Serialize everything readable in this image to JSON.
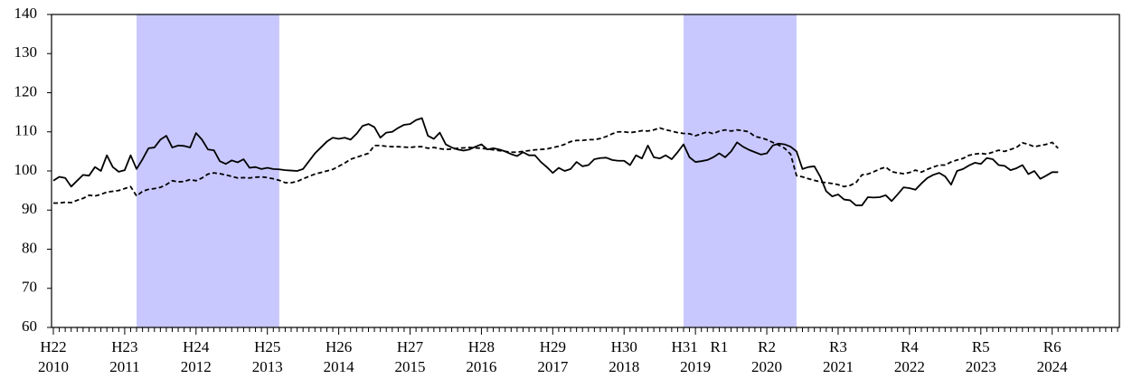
{
  "chart_data": {
    "type": "line",
    "categories": [
      "2010",
      null,
      null,
      null,
      null,
      null,
      null,
      null,
      null,
      null,
      null,
      null,
      "2011",
      null,
      null,
      null,
      null,
      null,
      null,
      null,
      null,
      null,
      null,
      null,
      "2012",
      null,
      null,
      null,
      null,
      null,
      null,
      null,
      null,
      null,
      null,
      null,
      "2013",
      null,
      null,
      null,
      null,
      null,
      null,
      null,
      null,
      null,
      null,
      null,
      "2014",
      null,
      null,
      null,
      null,
      null,
      null,
      null,
      null,
      null,
      null,
      null,
      "2015",
      null,
      null,
      null,
      null,
      null,
      null,
      null,
      null,
      null,
      null,
      null,
      "2016",
      null,
      null,
      null,
      null,
      null,
      null,
      null,
      null,
      null,
      null,
      null,
      "2017",
      null,
      null,
      null,
      null,
      null,
      null,
      null,
      null,
      null,
      null,
      null,
      "2018",
      null,
      null,
      null,
      null,
      null,
      null,
      null,
      null,
      null,
      null,
      null,
      "2019",
      null,
      null,
      null,
      null,
      null,
      null,
      null,
      null,
      null,
      null,
      null,
      "2020",
      null,
      null,
      null,
      null,
      null,
      null,
      null,
      null,
      null,
      null,
      null,
      "2021",
      null,
      null,
      null,
      null,
      null,
      null,
      null,
      null,
      null,
      null,
      null,
      "2022",
      null,
      null,
      null,
      null,
      null,
      null,
      null,
      null,
      null,
      null,
      null,
      "2023",
      null,
      null,
      null,
      null,
      null,
      null,
      null,
      null,
      null,
      null,
      null,
      "2024",
      null,
      null,
      null,
      null,
      null,
      null,
      null,
      null,
      null,
      null,
      null
    ],
    "era_labels": [
      "H22",
      null,
      null,
      null,
      null,
      null,
      null,
      null,
      null,
      null,
      null,
      null,
      "H23",
      null,
      null,
      null,
      null,
      null,
      null,
      null,
      null,
      null,
      null,
      null,
      "H24",
      null,
      null,
      null,
      null,
      null,
      null,
      null,
      null,
      null,
      null,
      null,
      "H25",
      null,
      null,
      null,
      null,
      null,
      null,
      null,
      null,
      null,
      null,
      null,
      "H26",
      null,
      null,
      null,
      null,
      null,
      null,
      null,
      null,
      null,
      null,
      null,
      "H27",
      null,
      null,
      null,
      null,
      null,
      null,
      null,
      null,
      null,
      null,
      null,
      "H28",
      null,
      null,
      null,
      null,
      null,
      null,
      null,
      null,
      null,
      null,
      null,
      "H29",
      null,
      null,
      null,
      null,
      null,
      null,
      null,
      null,
      null,
      null,
      null,
      "H30",
      null,
      null,
      null,
      null,
      null,
      null,
      null,
      null,
      null,
      null,
      null,
      "H31",
      null,
      null,
      null,
      "R1",
      null,
      null,
      null,
      null,
      null,
      null,
      null,
      "R2",
      null,
      null,
      null,
      null,
      null,
      null,
      null,
      null,
      null,
      null,
      null,
      "R3",
      null,
      null,
      null,
      null,
      null,
      null,
      null,
      null,
      null,
      null,
      null,
      "R4",
      null,
      null,
      null,
      null,
      null,
      null,
      null,
      null,
      null,
      null,
      null,
      "R5",
      null,
      null,
      null,
      null,
      null,
      null,
      null,
      null,
      null,
      null,
      null,
      "R6",
      null,
      null,
      null,
      null,
      null,
      null,
      null,
      null,
      null,
      null,
      null
    ],
    "series": [
      {
        "color": "#000000",
        "style": "solid",
        "values": [
          97.5,
          98.5,
          98.2,
          96,
          97.5,
          99,
          98.8,
          101,
          100,
          104,
          101,
          99.8,
          100.2,
          104,
          100.5,
          103,
          105.8,
          106,
          108,
          109,
          106,
          106.5,
          106.4,
          106,
          109.7,
          108,
          105.5,
          105.3,
          102.5,
          101.8,
          102.7,
          102.2,
          103,
          100.8,
          101,
          100.5,
          100.8,
          100.5,
          100.4,
          100.2,
          100.1,
          100,
          100.5,
          102.5,
          104.5,
          106,
          107.5,
          108.5,
          108.2,
          108.5,
          108,
          109.5,
          111.5,
          112,
          111.2,
          108.5,
          109.8,
          110,
          111,
          111.8,
          112,
          113,
          113.5,
          109,
          108.2,
          109.8,
          106.8,
          106,
          105.5,
          105.2,
          105.5,
          106.2,
          106.8,
          105.5,
          105.8,
          105.5,
          105,
          104.3,
          103.8,
          104.8,
          104,
          104,
          102.3,
          101,
          99.5,
          100.8,
          100,
          100.5,
          102.3,
          101.2,
          101.5,
          103,
          103.3,
          103.4,
          102.8,
          102.6,
          102.6,
          101.5,
          104,
          103.2,
          106.5,
          103.5,
          103.2,
          104,
          103,
          104.8,
          106.8,
          103.5,
          102.3,
          102.5,
          102.8,
          103.5,
          104.5,
          103.5,
          105,
          107.3,
          106.2,
          105.4,
          104.8,
          104.2,
          104.5,
          106.5,
          107,
          106.8,
          106.2,
          105,
          100.5,
          101,
          101.2,
          98.5,
          94.8,
          93.5,
          94,
          92.7,
          92.5,
          91.2,
          91.2,
          93.3,
          93.2,
          93.3,
          93.8,
          92.3,
          94,
          95.8,
          95.6,
          95.2,
          96.8,
          98.2,
          99,
          99.5,
          98.6,
          96.5,
          100,
          100.5,
          101.4,
          102.1,
          101.8,
          103.3,
          103,
          101.5,
          101.3,
          100.2,
          100.7,
          101.5,
          99.2,
          100,
          98,
          98.8,
          99.7,
          99.7,
          null,
          null,
          null,
          null,
          null,
          null,
          null,
          null,
          null,
          null
        ]
      },
      {
        "color": "#000000",
        "style": "dashed",
        "values": [
          91.8,
          91.8,
          92,
          91.9,
          92.5,
          93,
          93.8,
          93.6,
          94,
          94.6,
          94.8,
          95,
          95.5,
          96,
          93.6,
          94.8,
          95.3,
          95.5,
          95.8,
          96.5,
          97.5,
          97.2,
          97.3,
          97.8,
          97.5,
          98.2,
          99.2,
          99.5,
          99.3,
          99,
          98.6,
          98.2,
          98.3,
          98.2,
          98.4,
          98.5,
          98.3,
          98,
          97.6,
          97,
          97,
          97.3,
          98,
          98.6,
          99.2,
          99.6,
          100,
          100.4,
          101.2,
          102,
          103,
          103.5,
          104,
          104.5,
          106.5,
          106.5,
          106.3,
          106.2,
          106.2,
          106.1,
          106,
          106.2,
          106.2,
          105.8,
          106,
          105.7,
          105.5,
          105.6,
          105.8,
          105.9,
          106,
          105.9,
          105.8,
          105.6,
          105.4,
          105.2,
          105,
          104.8,
          104.8,
          105,
          105.2,
          105.4,
          105.5,
          105.6,
          106,
          106.3,
          106.8,
          107.5,
          107.8,
          107.8,
          108,
          108,
          108.3,
          108.8,
          109.5,
          110,
          110,
          109.8,
          110,
          110.3,
          110.2,
          110.5,
          111,
          110.5,
          110.2,
          109.8,
          109.6,
          109.5,
          109,
          109.5,
          110,
          109.5,
          110.2,
          110.5,
          110.2,
          110.5,
          110.3,
          110,
          108.8,
          108.5,
          108,
          107.3,
          106.6,
          105.8,
          104.3,
          98.8,
          98.5,
          98,
          97.6,
          97.2,
          97,
          96.8,
          96.5,
          96,
          96.3,
          97,
          99,
          99.2,
          99.8,
          100.5,
          101,
          99.8,
          99.5,
          99.3,
          99.6,
          100.2,
          99.7,
          100.4,
          101,
          101.5,
          101.5,
          102.3,
          102.8,
          103.2,
          104,
          104.3,
          104.5,
          104.3,
          104.8,
          105.3,
          105,
          105.5,
          106,
          107.2,
          106.8,
          106.2,
          106.5,
          106.8,
          107.3,
          105.8,
          null,
          null,
          null,
          null,
          null,
          null,
          null,
          null,
          null,
          null
        ]
      }
    ],
    "shaded": [
      {
        "from": 14,
        "to": 38
      },
      {
        "from": 106,
        "to": 125
      }
    ],
    "shade_color": "#c8c8ff",
    "ylim": [
      60,
      140
    ],
    "yticks": [
      60,
      70,
      80,
      90,
      100,
      110,
      120,
      130,
      140
    ],
    "grid": false
  }
}
